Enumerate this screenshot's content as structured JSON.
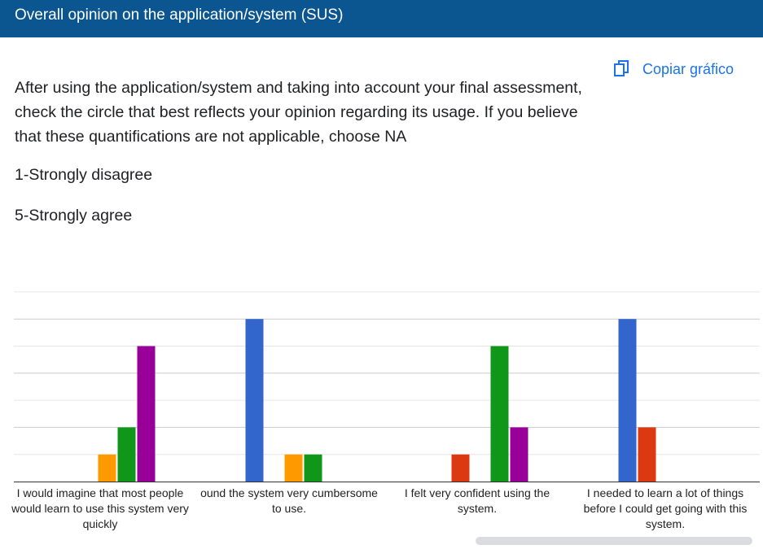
{
  "header": {
    "title": "Overall opinion on the application/system (SUS)"
  },
  "toolbar": {
    "copy_label": "Copiar gráfico",
    "copy_icon": "copy-icon"
  },
  "question": {
    "description": "After using the application/system and taking into account your final assessment, check the circle that best reflects your opinion regarding its usage. If you believe that these quantifications are not applicable, choose NA",
    "scale_low": "1-Strongly disagree",
    "scale_high": "5-Strongly agree"
  },
  "colors": {
    "header_bg": "#0b5591",
    "accent": "#1a73e8"
  },
  "chart_data": {
    "type": "bar",
    "categories": [
      "I would imagine that most people would learn to use this system very quickly",
      "ound the system very cumbersome to use.",
      "I felt very confident using the system.",
      "I needed to learn a lot of things before I could get going with this system."
    ],
    "series": [
      {
        "color": "#3366cc",
        "values": [
          0,
          6,
          0,
          6
        ]
      },
      {
        "color": "#dc3912",
        "values": [
          0,
          0,
          1,
          2
        ]
      },
      {
        "color": "#ff9900",
        "values": [
          1,
          1,
          0,
          0
        ]
      },
      {
        "color": "#109618",
        "values": [
          2,
          1,
          5,
          0
        ]
      },
      {
        "color": "#990099",
        "values": [
          5,
          0,
          2,
          0
        ]
      }
    ],
    "ylim": [
      0,
      7
    ],
    "grid": true,
    "legend": "none"
  }
}
